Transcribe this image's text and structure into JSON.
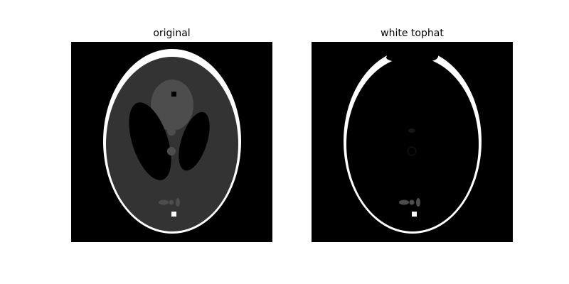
{
  "figure": {
    "panels": [
      {
        "title": "original"
      },
      {
        "title": "white tophat"
      }
    ]
  },
  "colors": {
    "figure_background": "#ffffff",
    "image_background": "#000000",
    "outer_skull": "#ffffff",
    "brain_tissue": "#333333",
    "upper_ellipse": "#4d4d4d",
    "small_spots": "#5a5a5a",
    "dark_ellipses": "#000000"
  }
}
